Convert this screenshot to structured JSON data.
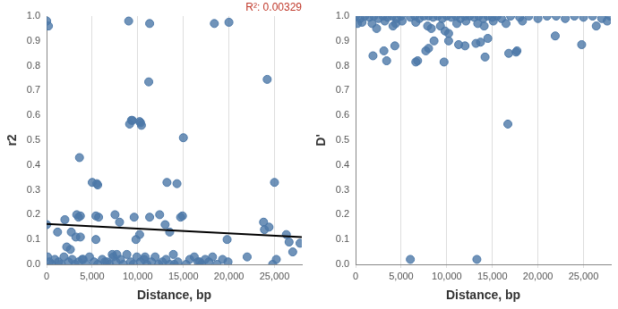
{
  "chart_data": [
    {
      "type": "scatter",
      "x_label": "Distance, bp",
      "y_label": "r2",
      "xlim": [
        0,
        28000
      ],
      "xticks": [
        0,
        {
          "value": 5000,
          "label": "5,000"
        },
        {
          "value": 10000,
          "label": "10,000"
        },
        {
          "value": 15000,
          "label": "15,000"
        },
        {
          "value": 20000,
          "label": "20,000"
        },
        {
          "value": 25000,
          "label": "25,000"
        }
      ],
      "ylim": [
        0,
        1
      ],
      "yticks": [
        {
          "value": 0,
          "label": "0.0"
        },
        0.1,
        0.2,
        0.3,
        0.4,
        0.5,
        0.6,
        0.7,
        0.8,
        0.9,
        {
          "value": 1,
          "label": "1.0"
        }
      ],
      "grid": "x",
      "annotation": {
        "text": "R²: 0.00329",
        "color": "#c0392b"
      },
      "series": [
        {
          "type": "scatter",
          "color": "#4c78a8",
          "x": [
            0,
            200,
            9000,
            11300,
            18400,
            20000,
            11200,
            24200,
            9100,
            9300,
            9400,
            10200,
            10400,
            10300,
            15000,
            3600,
            5000,
            5600,
            5500,
            13200,
            14300,
            25000,
            7500,
            14700,
            14900,
            3300,
            3500,
            3700,
            5400,
            5700,
            9600,
            11300,
            12400,
            13000,
            2000,
            8000,
            0,
            23800,
            24400,
            23900,
            26300,
            1200,
            2700,
            19800,
            3200,
            3700,
            5400,
            9800,
            10200,
            13500,
            27800,
            26600,
            27000,
            2200,
            2600,
            7200,
            7700,
            100,
            300,
            600,
            900,
            1300,
            1600,
            1900,
            2400,
            2800,
            3100,
            3500,
            3900,
            4300,
            4700,
            5200,
            5600,
            6100,
            6400,
            6900,
            7300,
            7600,
            8100,
            8400,
            8800,
            9200,
            9500,
            9900,
            10300,
            10700,
            11000,
            11500,
            11900,
            12300,
            12700,
            13100,
            13500,
            13900,
            14400,
            15300,
            15700,
            16200,
            16600,
            17000,
            17400,
            17800,
            18200,
            18700,
            19300,
            19900,
            22000,
            24800,
            25200,
            16800,
            14000,
            4000,
            6600,
            10800
          ],
          "values": [
            0.98,
            0.96,
            0.98,
            0.97,
            0.97,
            0.975,
            0.735,
            0.745,
            0.565,
            0.58,
            0.58,
            0.575,
            0.56,
            0.57,
            0.51,
            0.43,
            0.33,
            0.32,
            0.325,
            0.33,
            0.325,
            0.33,
            0.2,
            0.19,
            0.195,
            0.2,
            0.19,
            0.195,
            0.195,
            0.19,
            0.19,
            0.19,
            0.2,
            0.16,
            0.18,
            0.17,
            0.16,
            0.17,
            0.15,
            0.14,
            0.12,
            0.13,
            0.13,
            0.1,
            0.11,
            0.11,
            0.1,
            0.1,
            0.12,
            0.13,
            0.085,
            0.09,
            0.05,
            0.07,
            0.06,
            0.04,
            0.04,
            0.03,
            0.01,
            0.0,
            0.02,
            0.01,
            0.0,
            0.03,
            0.01,
            0.02,
            0.0,
            0.01,
            0.02,
            0.0,
            0.03,
            0.01,
            0.0,
            0.02,
            0.01,
            0.0,
            0.03,
            0.01,
            0.02,
            0.0,
            0.04,
            0.01,
            0.0,
            0.03,
            0.01,
            0.02,
            0.0,
            0.01,
            0.03,
            0.0,
            0.01,
            0.02,
            0.0,
            0.04,
            0.01,
            0.0,
            0.02,
            0.03,
            0.01,
            0.0,
            0.02,
            0.01,
            0.03,
            0.0,
            0.02,
            0.01,
            0.03,
            0.0,
            0.02,
            0.01,
            0.0,
            0.02,
            0.01,
            0.03
          ]
        },
        {
          "type": "line",
          "color": "#000000",
          "x": [
            0,
            28000
          ],
          "values": [
            0.163,
            0.11
          ]
        }
      ]
    },
    {
      "type": "scatter",
      "x_label": "Distance, bp",
      "y_label": "D'",
      "xlim": [
        0,
        28000
      ],
      "xticks": [
        0,
        {
          "value": 5000,
          "label": "5,000"
        },
        {
          "value": 10000,
          "label": "10,000"
        },
        {
          "value": 15000,
          "label": "15,000"
        },
        {
          "value": 20000,
          "label": "20,000"
        },
        {
          "value": 25000,
          "label": "25,000"
        }
      ],
      "ylim": [
        0,
        1
      ],
      "yticks": [
        {
          "value": 0,
          "label": "0.0"
        },
        0.1,
        0.2,
        0.3,
        0.4,
        0.5,
        0.6,
        0.7,
        0.8,
        0.9,
        {
          "value": 1,
          "label": "1.0"
        }
      ],
      "grid": "x",
      "series": [
        {
          "type": "scatter",
          "color": "#4c78a8",
          "x": [
            0,
            500,
            1000,
            1500,
            2000,
            2500,
            3000,
            3500,
            4000,
            4500,
            5000,
            6000,
            6500,
            7000,
            7500,
            8000,
            8500,
            9000,
            9500,
            10000,
            10500,
            11000,
            11500,
            12000,
            12500,
            13000,
            13500,
            14000,
            14500,
            15000,
            15500,
            16000,
            17000,
            18000,
            19000,
            20000,
            21000,
            22000,
            23000,
            24000,
            25000,
            26000,
            27000,
            27900,
            200,
            700,
            1800,
            2300,
            3200,
            4100,
            4400,
            5100,
            6600,
            7900,
            8300,
            9300,
            9800,
            10200,
            11100,
            12100,
            13400,
            14100,
            15100,
            16500,
            18300,
            26400,
            27600,
            1900,
            3100,
            3400,
            4300,
            6600,
            6800,
            7700,
            8000,
            8600,
            9700,
            10200,
            11300,
            12000,
            13200,
            13700,
            14200,
            14500,
            16800,
            17600,
            17700,
            21900,
            24800,
            16700,
            6000,
            13300
          ],
          "values": [
            1.0,
            0.99,
            1.0,
            0.995,
            1.0,
            0.99,
            1.0,
            0.995,
            1.0,
            0.99,
            1.0,
            0.995,
            1.0,
            0.99,
            1.0,
            1.0,
            0.995,
            1.0,
            0.99,
            1.0,
            0.995,
            1.0,
            0.99,
            1.0,
            1.0,
            0.995,
            1.0,
            0.99,
            1.0,
            0.995,
            1.0,
            0.99,
            1.0,
            0.995,
            1.0,
            0.99,
            1.0,
            1.0,
            0.99,
            1.0,
            0.995,
            1.0,
            0.99,
            1.0,
            0.97,
            0.975,
            0.97,
            0.95,
            0.98,
            0.96,
            0.97,
            0.98,
            0.975,
            0.96,
            0.95,
            0.96,
            0.94,
            0.93,
            0.97,
            0.98,
            0.97,
            0.96,
            0.98,
            0.97,
            0.98,
            0.96,
            0.98,
            0.84,
            0.86,
            0.82,
            0.88,
            0.815,
            0.82,
            0.86,
            0.87,
            0.9,
            0.815,
            0.9,
            0.885,
            0.88,
            0.89,
            0.895,
            0.835,
            0.91,
            0.85,
            0.855,
            0.86,
            0.92,
            0.885,
            0.565,
            0.02,
            0.02
          ]
        }
      ]
    }
  ]
}
